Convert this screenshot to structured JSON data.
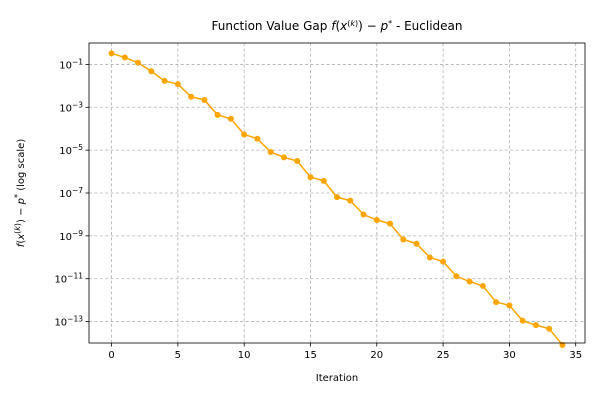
{
  "chart_data": {
    "type": "line",
    "title": "Function Value Gap f(x^(k)) − p* - Euclidean",
    "xlabel": "Iteration",
    "ylabel": "f(x^(k)) − p*  (log scale)",
    "xlim": [
      -1.7,
      35.7
    ],
    "ylim": [
      1e-14,
      1
    ],
    "yscale": "log",
    "grid": true,
    "xticks": [
      0,
      5,
      10,
      15,
      20,
      25,
      30,
      35
    ],
    "yticks": [
      -13,
      -11,
      -9,
      -7,
      -5,
      -3,
      -1
    ],
    "color": "#FFA500",
    "x": [
      0,
      1,
      2,
      3,
      4,
      5,
      6,
      7,
      8,
      9,
      10,
      11,
      12,
      13,
      14,
      15,
      16,
      17,
      18,
      19,
      20,
      21,
      22,
      23,
      24,
      25,
      26,
      27,
      28,
      29,
      30,
      31,
      32,
      33,
      34
    ],
    "y": [
      0.33,
      0.21,
      0.12,
      0.048,
      0.017,
      0.012,
      0.0031,
      0.0022,
      0.00044,
      0.00029,
      5.4e-05,
      3.4e-05,
      8.2e-06,
      4.6e-06,
      3.1e-06,
      5.5e-07,
      3.7e-07,
      6.4e-08,
      4.4e-08,
      9.9e-09,
      5.5e-09,
      3.7e-09,
      6.8e-10,
      4.3e-10,
      9.8e-11,
      6.3e-11,
      1.3e-11,
      7.4e-12,
      4.6e-12,
      8.1e-13,
      5.7e-13,
      1.1e-13,
      6.8e-14,
      4.6e-14,
      8.1e-15
    ]
  }
}
